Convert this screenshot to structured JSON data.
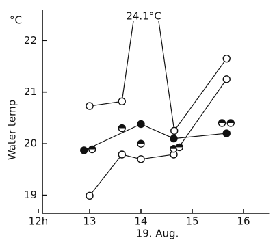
{
  "chart_data": {
    "type": "line",
    "y_unit": "°C",
    "y_label": "Water temp",
    "x_label": "19. Aug.",
    "annotation": "24.1°C",
    "xlim": [
      12,
      16.5
    ],
    "ylim": [
      18.65,
      22.6
    ],
    "xticks": [
      {
        "value": 12,
        "label": "12h"
      },
      13,
      14,
      15,
      16
    ],
    "yticks": [
      19,
      20,
      21,
      22
    ],
    "series": [
      {
        "color": "#111111",
        "marker": "open",
        "line": true,
        "x": [
          13.0,
          13.63,
          14.1,
          14.65,
          15.67
        ],
        "values": [
          20.73,
          20.82,
          24.1,
          20.25,
          21.65
        ]
      },
      {
        "color": "#111111",
        "marker": "filled",
        "line": true,
        "x": [
          12.89,
          14.0,
          14.64,
          15.67
        ],
        "values": [
          19.87,
          20.38,
          20.1,
          20.2
        ]
      },
      {
        "color": "#111111",
        "marker": "open",
        "line": true,
        "x": [
          13.0,
          13.63,
          14.0,
          14.64,
          15.67
        ],
        "values": [
          18.99,
          19.79,
          19.7,
          19.79,
          21.25
        ]
      },
      {
        "color": "#111111",
        "marker": "half",
        "line": false,
        "x": [
          13.05,
          13.63,
          14.0,
          14.64,
          14.75,
          15.58,
          15.75
        ],
        "values": [
          19.89,
          20.3,
          20.0,
          19.9,
          19.93,
          20.4,
          20.4
        ]
      }
    ]
  }
}
